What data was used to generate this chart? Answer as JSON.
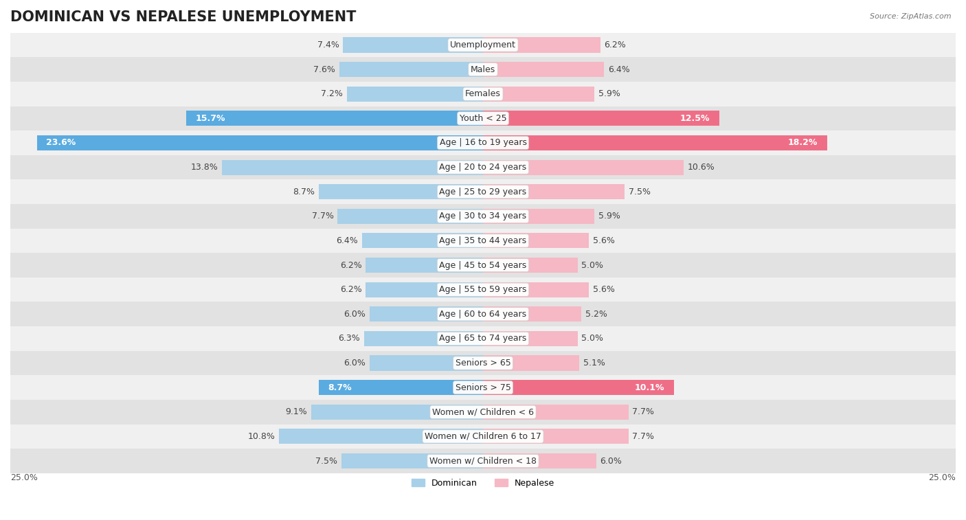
{
  "title": "DOMINICAN VS NEPALESE UNEMPLOYMENT",
  "source": "Source: ZipAtlas.com",
  "categories": [
    "Unemployment",
    "Males",
    "Females",
    "Youth < 25",
    "Age | 16 to 19 years",
    "Age | 20 to 24 years",
    "Age | 25 to 29 years",
    "Age | 30 to 34 years",
    "Age | 35 to 44 years",
    "Age | 45 to 54 years",
    "Age | 55 to 59 years",
    "Age | 60 to 64 years",
    "Age | 65 to 74 years",
    "Seniors > 65",
    "Seniors > 75",
    "Women w/ Children < 6",
    "Women w/ Children 6 to 17",
    "Women w/ Children < 18"
  ],
  "dominican": [
    7.4,
    7.6,
    7.2,
    15.7,
    23.6,
    13.8,
    8.7,
    7.7,
    6.4,
    6.2,
    6.2,
    6.0,
    6.3,
    6.0,
    8.7,
    9.1,
    10.8,
    7.5
  ],
  "nepalese": [
    6.2,
    6.4,
    5.9,
    12.5,
    18.2,
    10.6,
    7.5,
    5.9,
    5.6,
    5.0,
    5.6,
    5.2,
    5.0,
    5.1,
    10.1,
    7.7,
    7.7,
    6.0
  ],
  "dominican_color": "#a8d0e8",
  "nepalese_color": "#f5b8c4",
  "dominican_highlight_color": "#5aabe0",
  "nepalese_highlight_color": "#ef6e87",
  "row_bg_light": "#f0f0f0",
  "row_bg_dark": "#e2e2e2",
  "max_val": 25.0,
  "bar_height": 0.62,
  "title_fontsize": 15,
  "label_fontsize": 9,
  "value_fontsize": 9,
  "legend_dominican": "Dominican",
  "legend_nepalese": "Nepalese",
  "highlight_rows": [
    "Youth < 25",
    "Age | 16 to 19 years",
    "Seniors > 75"
  ]
}
